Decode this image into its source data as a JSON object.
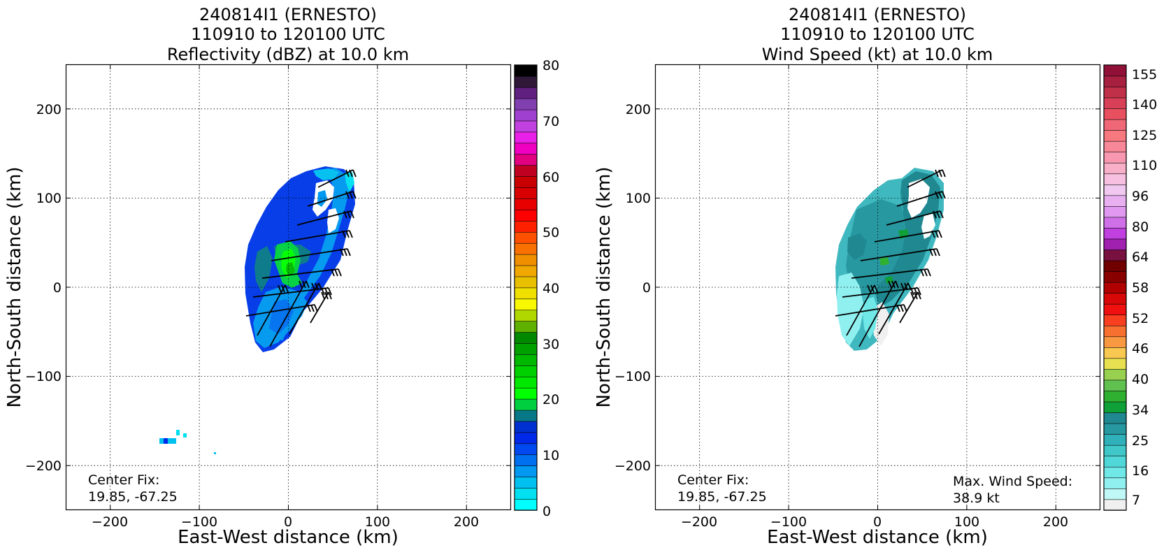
{
  "chart_data": [
    {
      "type": "heatmap",
      "title": [
        "240814I1 (ERNESTO)",
        "110910 to 120100 UTC",
        "Reflectivity (dBZ) at 10.0 km"
      ],
      "xlabel": "East-West distance (km)",
      "ylabel": "North-South distance (km)",
      "xlim": [
        -250,
        250
      ],
      "ylim": [
        -250,
        250
      ],
      "xticks": [
        -200,
        -100,
        0,
        100,
        200
      ],
      "yticks": [
        200,
        100,
        0,
        -100,
        -200
      ],
      "xtick_labels": [
        "−200",
        "−100",
        "0",
        "100",
        "200"
      ],
      "ytick_labels": [
        "200",
        "100",
        "0",
        "−100",
        "−200"
      ],
      "grid": true,
      "annotations": [
        "Center Fix:",
        "19.85, -67.25"
      ],
      "colorbar": {
        "min": 0,
        "max": 80,
        "tick_values": [
          0,
          10,
          20,
          30,
          40,
          50,
          60,
          70,
          80
        ],
        "tick_labels": [
          "0",
          "10",
          "20",
          "30",
          "40",
          "50",
          "60",
          "70",
          "80"
        ],
        "colors": [
          "#00ffff",
          "#00e0f0",
          "#00c0f0",
          "#0098f0",
          "#0070f0",
          "#0048f0",
          "#0028e8",
          "#0030d0",
          "#087888",
          "#00d040",
          "#00ff00",
          "#00e800",
          "#00d000",
          "#00b800",
          "#00a000",
          "#008800",
          "#60b000",
          "#b0d800",
          "#f8f800",
          "#f0e000",
          "#e8c000",
          "#f0a800",
          "#f09000",
          "#f87000",
          "#ff5000",
          "#ff2000",
          "#ff0000",
          "#e80000",
          "#d80000",
          "#c80000",
          "#c00020",
          "#e00080",
          "#f000c0",
          "#e820e8",
          "#c040e0",
          "#a040d0",
          "#8040b0",
          "#602080",
          "#301838",
          "#000000"
        ]
      }
    },
    {
      "type": "heatmap",
      "title": [
        "240814I1 (ERNESTO)",
        "110910 to 120100 UTC",
        "Wind Speed (kt) at 10.0 km"
      ],
      "xlabel": "East-West distance (km)",
      "ylabel": "North-South distance (km)",
      "xlim": [
        -250,
        250
      ],
      "ylim": [
        -250,
        250
      ],
      "xticks": [
        -200,
        -100,
        0,
        100,
        200
      ],
      "yticks": [
        200,
        100,
        0,
        -100,
        -200
      ],
      "xtick_labels": [
        "−200",
        "−100",
        "0",
        "100",
        "200"
      ],
      "ytick_labels": [
        "200",
        "100",
        "0",
        "−100",
        "−200"
      ],
      "grid": true,
      "annotations": [
        "Center Fix:",
        "19.85, -67.25",
        "Max. Wind Speed:",
        "38.9 kt"
      ],
      "max_wind_speed_kt": 38.9,
      "colorbar": {
        "tick_labels": [
          "7",
          "16",
          "25",
          "34",
          "40",
          "46",
          "52",
          "58",
          "64",
          "80",
          "96",
          "110",
          "125",
          "140",
          "155"
        ],
        "colors": [
          "#f0f0f0",
          "#c0f8f8",
          "#90f0f0",
          "#70e8e8",
          "#50d8d8",
          "#40c8c8",
          "#30b0b8",
          "#2898a0",
          "#208890",
          "#10a038",
          "#30b030",
          "#60c050",
          "#98d050",
          "#e8e050",
          "#f8c850",
          "#f89840",
          "#f87030",
          "#f84020",
          "#f01010",
          "#d80808",
          "#b00000",
          "#880000",
          "#700000",
          "#781040",
          "#a020b0",
          "#c040e0",
          "#d070e8",
          "#e098f0",
          "#e8b0f0",
          "#f0c8f0",
          "#f8c0e0",
          "#f8b0c8",
          "#f898b0",
          "#f88898",
          "#f87880",
          "#f06878",
          "#e85060",
          "#d84058",
          "#c03048",
          "#a82040",
          "#901038"
        ]
      }
    }
  ]
}
